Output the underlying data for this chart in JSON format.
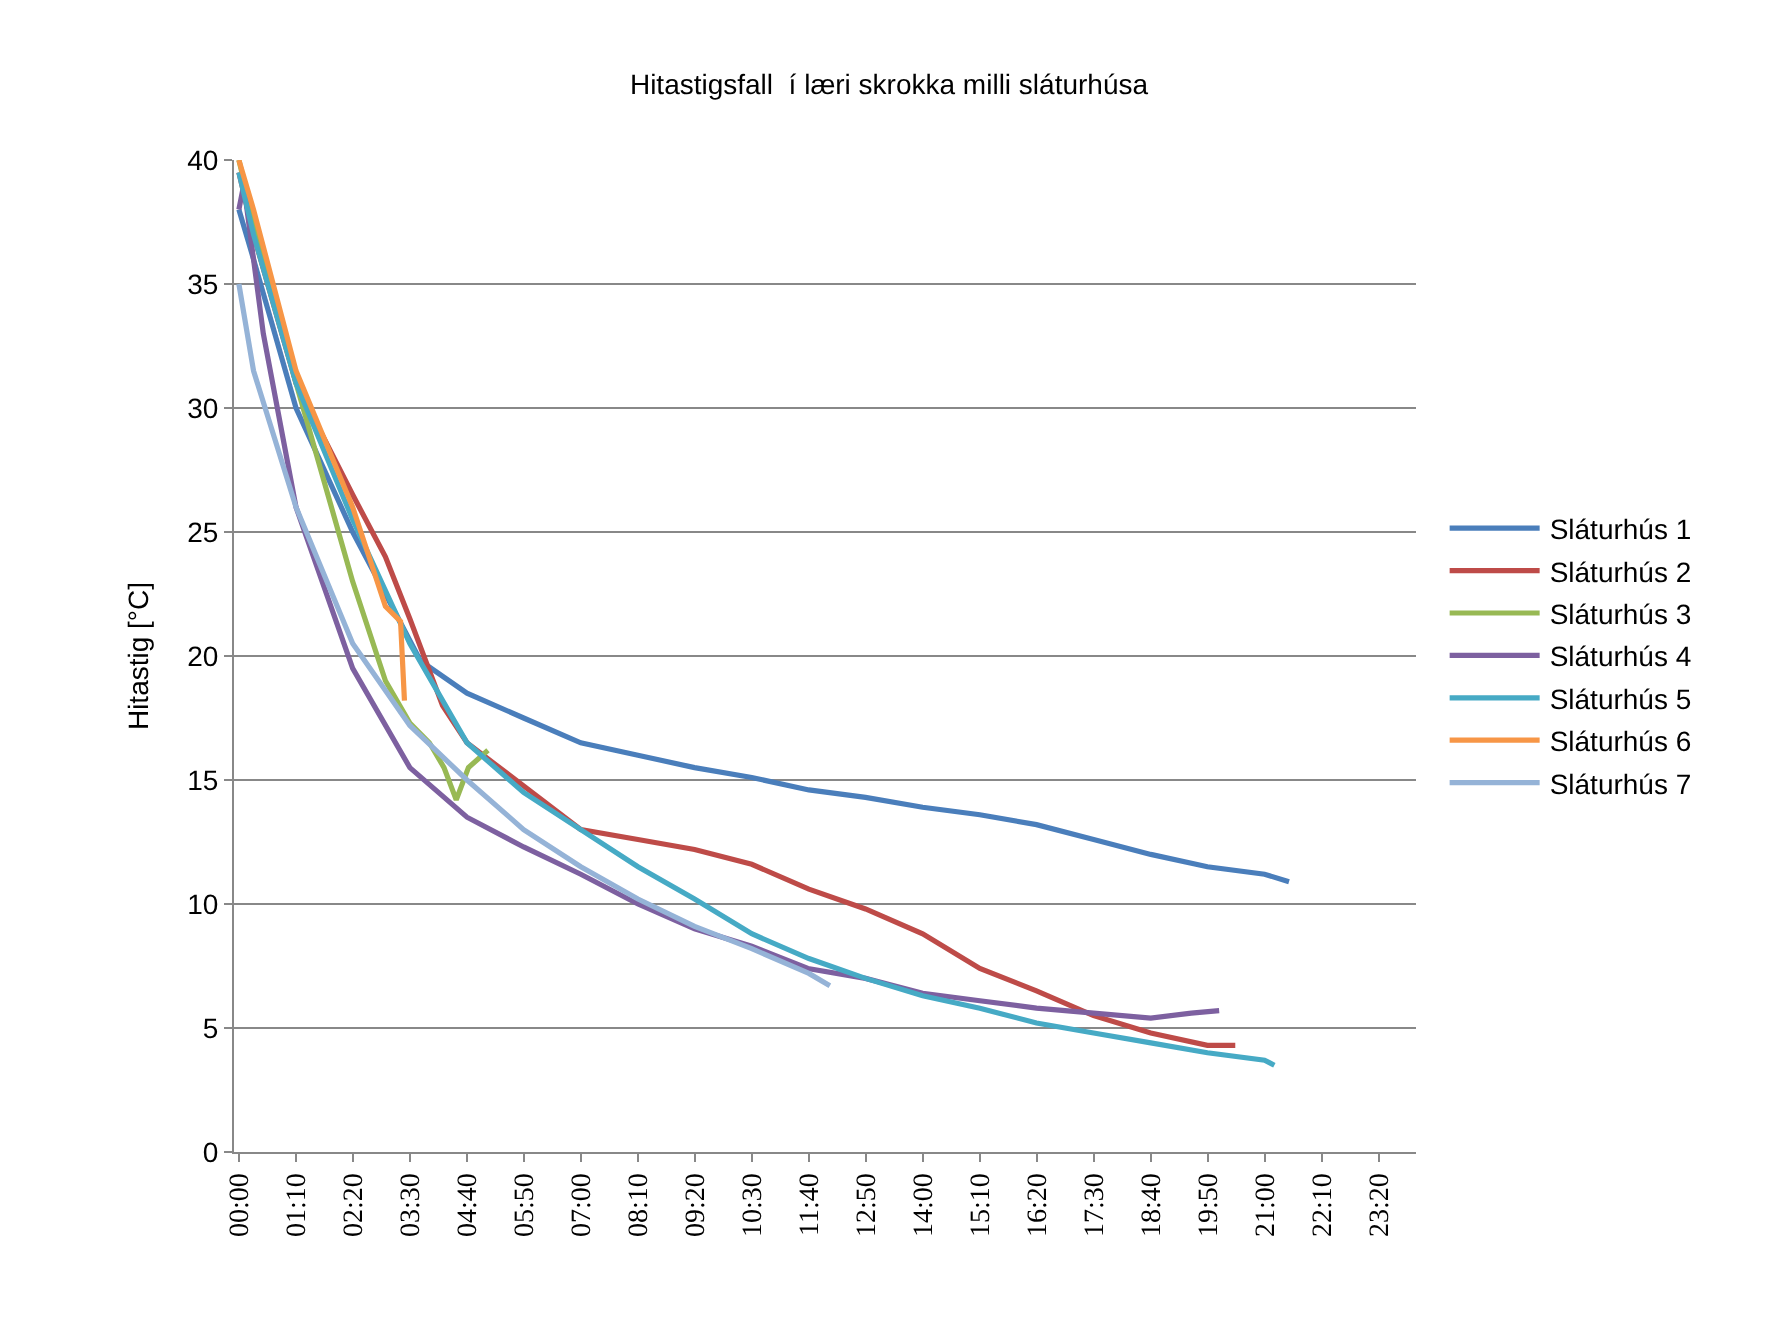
{
  "chart_data": {
    "type": "line",
    "title": "Hitastigsfall  í læri skrokka milli sláturhúsa",
    "ylabel": "Hitastig [°C]",
    "xlim": [
      -0.1,
      24.1
    ],
    "xticks": [
      {
        "value": 0,
        "label": "00:00"
      },
      {
        "value": 1.1667,
        "label": "01:10"
      },
      {
        "value": 2.3333,
        "label": "02:20"
      },
      {
        "value": 3.5,
        "label": "03:30"
      },
      {
        "value": 4.6667,
        "label": "04:40"
      },
      {
        "value": 5.8333,
        "label": "05:50"
      },
      {
        "value": 7,
        "label": "07:00"
      },
      {
        "value": 8.1667,
        "label": "08:10"
      },
      {
        "value": 9.3333,
        "label": "09:20"
      },
      {
        "value": 10.5,
        "label": "10:30"
      },
      {
        "value": 11.6667,
        "label": "11:40"
      },
      {
        "value": 12.8333,
        "label": "12:50"
      },
      {
        "value": 14,
        "label": "14:00"
      },
      {
        "value": 15.1667,
        "label": "15:10"
      },
      {
        "value": 16.3333,
        "label": "16:20"
      },
      {
        "value": 17.5,
        "label": "17:30"
      },
      {
        "value": 18.6667,
        "label": "18:40"
      },
      {
        "value": 19.8333,
        "label": "19:50"
      },
      {
        "value": 21,
        "label": "21:00"
      },
      {
        "value": 22.1667,
        "label": "22:10"
      },
      {
        "value": 23.3333,
        "label": "23:20"
      }
    ],
    "ylim": [
      0,
      40
    ],
    "yticks": [
      0,
      5,
      10,
      15,
      20,
      25,
      30,
      35,
      40
    ],
    "grid": "y",
    "legend": "right",
    "marker": "none",
    "line_style": "solid",
    "series": [
      {
        "name": "Sláturhús 1",
        "color": "#4a7ebb",
        "x": [
          0,
          0.3,
          1.17,
          2.33,
          3.0,
          3.72,
          4.67,
          5.83,
          7,
          8.17,
          9.33,
          10.5,
          11.67,
          12.83,
          14,
          15.17,
          16.33,
          17.5,
          18.67,
          19.83,
          21,
          21.5
        ],
        "values": [
          38,
          36,
          30,
          25,
          22.5,
          19.8,
          18.5,
          17.5,
          16.5,
          16,
          15.5,
          15.1,
          14.6,
          14.3,
          13.9,
          13.6,
          13.2,
          12.6,
          12,
          11.5,
          11.2,
          10.9
        ]
      },
      {
        "name": "Sláturhús 2",
        "color": "#be4b48",
        "x": [
          0,
          0.3,
          1.17,
          2.33,
          3.0,
          3.5,
          4.17,
          4.67,
          7,
          8.17,
          9.33,
          10.5,
          11.67,
          12.83,
          14,
          15.17,
          16.33,
          17.5,
          18.67,
          19.83,
          20.4
        ],
        "values": [
          39.5,
          37,
          31,
          26.5,
          24,
          21.5,
          18,
          16.5,
          13,
          12.6,
          12.2,
          11.6,
          10.6,
          9.8,
          8.8,
          7.4,
          6.5,
          5.5,
          4.8,
          4.3,
          4.3
        ]
      },
      {
        "name": "Sláturhús 3",
        "color": "#98b954",
        "x": [
          0,
          0.3,
          1.17,
          2.33,
          3.0,
          3.5,
          3.9,
          4.2,
          4.45,
          4.7,
          5.1
        ],
        "values": [
          40,
          37.5,
          31,
          23,
          19,
          17.3,
          16.5,
          15.5,
          14.2,
          15.5,
          16.2
        ]
      },
      {
        "name": "Sláturhús 4",
        "color": "#7d60a0",
        "x": [
          0,
          0.1,
          0.5,
          1.17,
          2.33,
          3.5,
          4.67,
          5.83,
          7,
          8.17,
          9.33,
          10.5,
          11.65,
          12.83,
          14,
          15.17,
          16.33,
          17.5,
          18.67,
          19.5,
          20.07
        ],
        "values": [
          38,
          39,
          33,
          26,
          19.5,
          15.5,
          13.5,
          12.3,
          11.2,
          10,
          9,
          8.3,
          7.4,
          7,
          6.4,
          6.1,
          5.8,
          5.6,
          5.4,
          5.6,
          5.7
        ]
      },
      {
        "name": "Sláturhús 5",
        "color": "#46aac5",
        "x": [
          0,
          0.3,
          1.17,
          2.33,
          3.5,
          4.67,
          5.83,
          7,
          8.17,
          9.33,
          10.5,
          11.67,
          12.83,
          14,
          15.17,
          16.33,
          17.5,
          18.67,
          19.83,
          21,
          21.2
        ],
        "values": [
          39.5,
          37,
          31,
          25.5,
          20.5,
          16.5,
          14.5,
          13,
          11.5,
          10.2,
          8.8,
          7.8,
          7,
          6.3,
          5.8,
          5.2,
          4.8,
          4.4,
          4,
          3.7,
          3.5
        ]
      },
      {
        "name": "Sláturhús 6",
        "color": "#f79646",
        "x": [
          0,
          0.3,
          1.17,
          2.33,
          3.0,
          3.31,
          3.39
        ],
        "values": [
          40,
          38,
          31.5,
          26,
          22,
          21.4,
          18.2
        ]
      },
      {
        "name": "Sláturhús 7",
        "color": "#95b3d7",
        "x": [
          0,
          0.3,
          1.17,
          2.33,
          3.5,
          4.67,
          5.83,
          7,
          8.17,
          9.33,
          10.5,
          11.67,
          12.1
        ],
        "values": [
          35,
          31.5,
          26,
          20.5,
          17.2,
          15,
          13,
          11.5,
          10.2,
          9.1,
          8.2,
          7.2,
          6.7
        ]
      }
    ]
  }
}
